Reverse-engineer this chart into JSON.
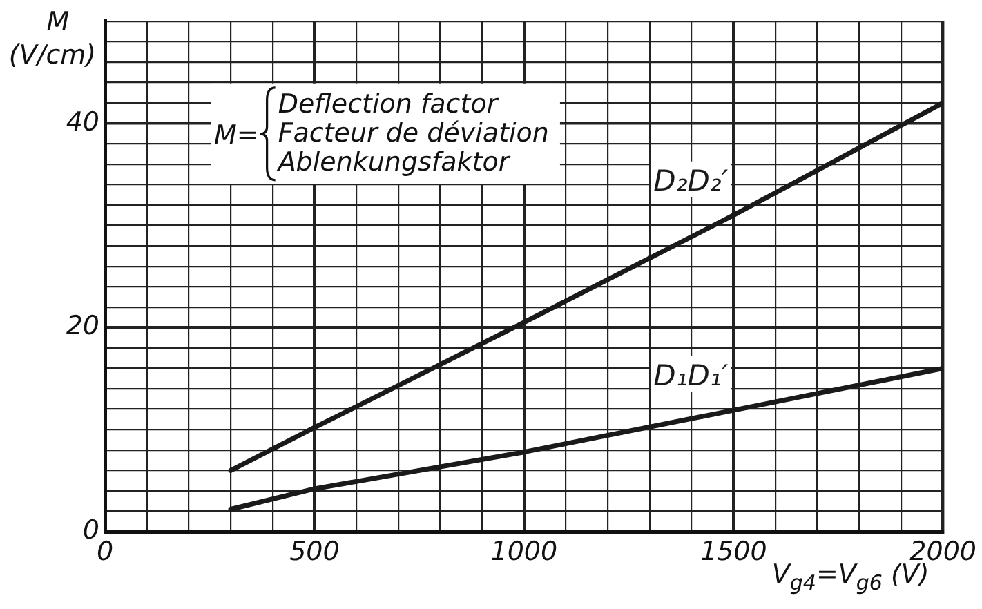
{
  "chart_data": {
    "type": "line",
    "xlabel": "V$_{g4}$=V$_{g6}$ (V)",
    "ylabel": "M (V/cm)",
    "annotations": [
      "M=",
      "Deflection factor",
      "Facteur de déviation",
      "Ablenkungsfaktor"
    ],
    "series": [
      {
        "name": "D₂D₂′",
        "color": "#1a1a1a",
        "x": [
          300,
          500,
          1000,
          1500,
          2000
        ],
        "values": [
          6,
          10.2,
          20.5,
          31,
          42
        ]
      },
      {
        "name": "D₁D₁′",
        "color": "#1a1a1a",
        "x": [
          300,
          500,
          1000,
          1500,
          2000
        ],
        "values": [
          2.2,
          4.2,
          7.8,
          11.9,
          16
        ]
      }
    ],
    "xlim": [
      0,
      2000
    ],
    "ylim": [
      0,
      50
    ],
    "xticks": [
      0,
      {
        "value": 100,
        "label": null
      },
      {
        "value": 200,
        "label": null
      },
      {
        "value": 300,
        "label": null
      },
      {
        "value": 400,
        "label": null
      },
      500,
      {
        "value": 600,
        "label": null
      },
      {
        "value": 700,
        "label": null
      },
      {
        "value": 800,
        "label": null
      },
      {
        "value": 900,
        "label": null
      },
      1000,
      {
        "value": 1100,
        "label": null
      },
      {
        "value": 1200,
        "label": null
      },
      {
        "value": 1300,
        "label": null
      },
      {
        "value": 1400,
        "label": null
      },
      1500,
      {
        "value": 1600,
        "label": null
      },
      {
        "value": 1700,
        "label": null
      },
      {
        "value": 1800,
        "label": null
      },
      {
        "value": 1900,
        "label": null
      },
      2000
    ],
    "yticks": [
      0,
      {
        "value": 2,
        "label": null
      },
      {
        "value": 4,
        "label": null
      },
      {
        "value": 6,
        "label": null
      },
      {
        "value": 8,
        "label": null
      },
      {
        "value": 10,
        "label": null
      },
      {
        "value": 12,
        "label": null
      },
      {
        "value": 14,
        "label": null
      },
      {
        "value": 16,
        "label": null
      },
      {
        "value": 18,
        "label": null
      },
      20,
      {
        "value": 22,
        "label": null
      },
      {
        "value": 24,
        "label": null
      },
      {
        "value": 26,
        "label": null
      },
      {
        "value": 28,
        "label": null
      },
      {
        "value": 30,
        "label": null
      },
      {
        "value": 32,
        "label": null
      },
      {
        "value": 34,
        "label": null
      },
      {
        "value": 36,
        "label": null
      },
      {
        "value": 38,
        "label": null
      },
      40,
      {
        "value": 42,
        "label": null
      },
      {
        "value": 44,
        "label": null
      },
      {
        "value": 46,
        "label": null
      },
      {
        "value": 48,
        "label": null
      },
      {
        "value": 50,
        "label": null
      }
    ],
    "grid": true,
    "legend": false,
    "marker": "none",
    "line_style": "solid"
  }
}
